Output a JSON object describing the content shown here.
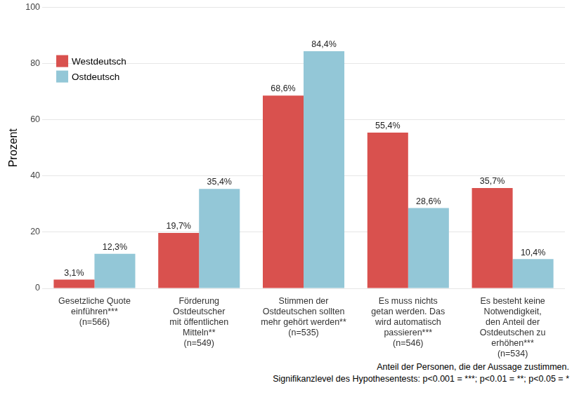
{
  "chart_data": {
    "type": "bar",
    "y_label": "Prozent",
    "categories": [
      [
        "Gesetzliche Quote",
        "einführen***",
        "(n=566)"
      ],
      [
        "Förderung",
        "Ostdeutscher",
        "mit öffentlichen",
        "Mitteln**",
        "(n=549)"
      ],
      [
        "Stimmen der",
        "Ostdeutschen sollten",
        "mehr gehört werden**",
        "(n=535)"
      ],
      [
        "Es muss nichts",
        "getan werden. Das",
        "wird automatisch",
        "passieren***",
        "(n=546)"
      ],
      [
        "Es besteht keine",
        "Notwendigkeit,",
        "den Anteil der",
        "Ostdeutschen zu",
        "erhöhen***",
        "(n=534)"
      ]
    ],
    "series": [
      {
        "name": "Westdeutsch",
        "color": "#d9514e",
        "values": [
          3.1,
          19.7,
          68.6,
          55.4,
          35.7
        ],
        "value_labels": [
          "3,1%",
          "19,7%",
          "68,6%",
          "55,4%",
          "35,7%"
        ]
      },
      {
        "name": "Ostdeutsch",
        "color": "#93c7d7",
        "values": [
          12.3,
          35.4,
          84.4,
          28.6,
          10.4
        ],
        "value_labels": [
          "12,3%",
          "35,4%",
          "84,4%",
          "28,6%",
          "10,4%"
        ]
      }
    ],
    "ylim": [
      0,
      100
    ],
    "yticks": [
      0,
      20,
      40,
      60,
      80,
      100
    ],
    "grid": true,
    "legend": "upper left",
    "data_labels": true,
    "annotations": [
      "Anteil der Personen, die der Aussage zustimmen.",
      "Signifikanzlevel des Hypothesentests: p<0.001 = ***; p<0.01 = **; p<0.05 = *"
    ]
  }
}
